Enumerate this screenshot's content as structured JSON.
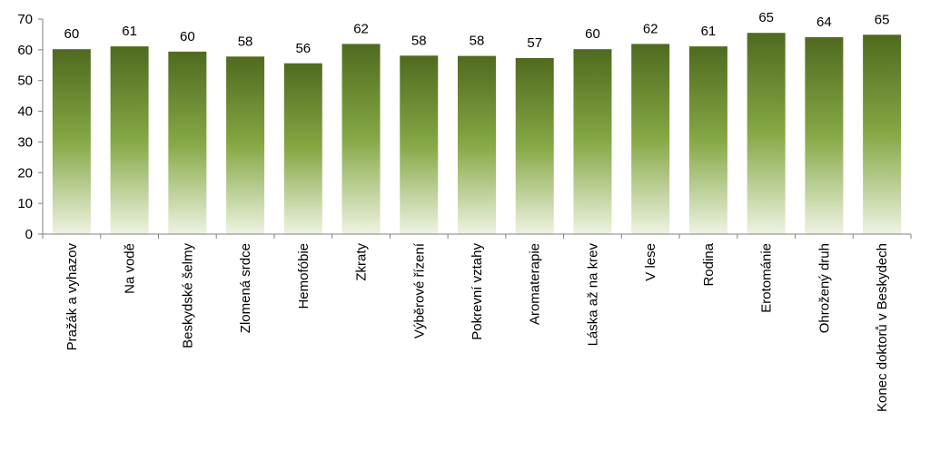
{
  "chart_data": {
    "type": "bar",
    "categories": [
      "Pražák a vyhazov",
      "Na vodě",
      "Beskydské šelmy",
      "Zlomená srdce",
      "Hemofóbie",
      "Zkraty",
      "Výběrové řízení",
      "Pokrevní vztahy",
      "Aromaterapie",
      "Láska až na krev",
      "V lese",
      "Rodina",
      "Erotománie",
      "Ohrožený druh",
      "Konec doktorů v Beskydech"
    ],
    "values": [
      60,
      61,
      60,
      58,
      56,
      62,
      58,
      58,
      57,
      60,
      62,
      61,
      65,
      64,
      65
    ],
    "bar_heights_read": [
      60.2,
      61.1,
      59.4,
      57.8,
      55.6,
      61.9,
      58.1,
      58.0,
      57.3,
      60.2,
      61.9,
      61.1,
      65.5,
      64.1,
      64.9
    ],
    "yticks": [
      "0",
      "10",
      "20",
      "30",
      "40",
      "50",
      "60",
      "70"
    ],
    "ylim": [
      0,
      70
    ],
    "grid": false,
    "legend": "none",
    "colors": {
      "bar_top": "#4f6a1f",
      "bar_mid": "#86a845",
      "bar_bottom": "#eef3e2",
      "axis": "#808080"
    }
  }
}
